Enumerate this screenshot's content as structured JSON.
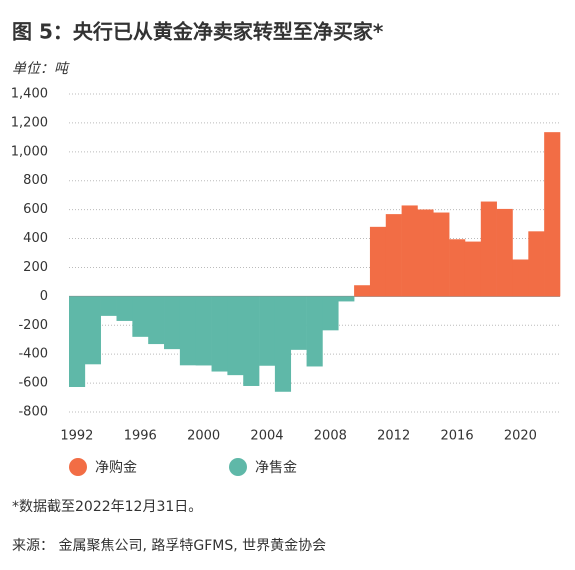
{
  "chart_data": {
    "type": "bar",
    "title": "图 5：央行已从黄金净卖家转型至净买家*",
    "y_label": "单位：吨",
    "categories": [
      1992,
      1993,
      1994,
      1995,
      1996,
      1997,
      1998,
      1999,
      2000,
      2001,
      2002,
      2003,
      2004,
      2005,
      2006,
      2007,
      2008,
      2009,
      2010,
      2011,
      2012,
      2013,
      2014,
      2015,
      2016,
      2017,
      2018,
      2019,
      2020,
      2021,
      2022
    ],
    "xticks": [
      1992,
      1996,
      2000,
      2004,
      2008,
      2012,
      2016,
      2020
    ],
    "series": [
      {
        "name": "净购金",
        "color": "#f26d45",
        "values": [
          null,
          null,
          null,
          null,
          null,
          null,
          null,
          null,
          null,
          null,
          null,
          null,
          null,
          null,
          null,
          null,
          null,
          null,
          77,
          481,
          569,
          629,
          601,
          580,
          395,
          379,
          656,
          605,
          255,
          450,
          1136
        ]
      },
      {
        "name": "净售金",
        "color": "#5fb8a8",
        "values": [
          -627,
          -470,
          -135,
          -170,
          -280,
          -330,
          -365,
          -477,
          -478,
          -520,
          -545,
          -620,
          -480,
          -660,
          -370,
          -485,
          -235,
          -35,
          null,
          null,
          null,
          null,
          null,
          null,
          null,
          null,
          null,
          null,
          null,
          null,
          null
        ]
      }
    ],
    "ylim": [
      -800,
      1400
    ],
    "yticks": [
      {
        "value": 1400,
        "label": "1,400"
      },
      {
        "value": 1200,
        "label": "1,200"
      },
      {
        "value": 1000,
        "label": "1,000"
      },
      800,
      600,
      400,
      200,
      0,
      -200,
      -400,
      -600,
      -800
    ],
    "grid": true,
    "note": "*数据截至2022年12月31日。",
    "source": "来源： 金属聚焦公司, 路孚特GFMS, 世界黄金协会"
  }
}
